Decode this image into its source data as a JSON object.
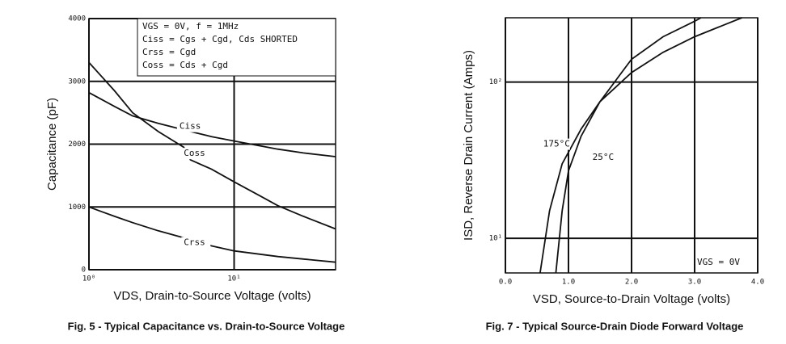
{
  "chart_data": [
    {
      "type": "line",
      "caption": "Fig. 5 - Typical Capacitance vs. Drain-to-Source Voltage",
      "xlabel": "VDS, Drain-to-Source Voltage (volts)",
      "ylabel": "Capacitance (pF)",
      "xscale": "log",
      "xlim": [
        1,
        50
      ],
      "xticks": [
        {
          "value": 1,
          "label": "10⁰"
        },
        {
          "value": 10,
          "label": "10¹"
        }
      ],
      "ylim": [
        0,
        4000
      ],
      "yticks": [
        0,
        1000,
        2000,
        3000,
        4000
      ],
      "grid": true,
      "annotations": [
        "VGS = 0V,  f = 1MHz",
        "Ciss = Cgs + Cgd,  Cds SHORTED",
        "Crss = Cgd",
        "Coss = Cds + Cgd"
      ],
      "series": [
        {
          "name": "Ciss",
          "color": "#111111",
          "x": [
            1,
            1.5,
            2,
            3,
            5,
            7,
            10,
            20,
            30,
            50
          ],
          "values": [
            2820,
            2600,
            2450,
            2330,
            2200,
            2120,
            2050,
            1920,
            1860,
            1800
          ]
        },
        {
          "name": "Coss",
          "color": "#111111",
          "x": [
            1,
            1.5,
            2,
            3,
            4.5,
            5,
            7,
            10,
            15,
            20,
            30,
            50
          ],
          "values": [
            3300,
            2850,
            2500,
            2200,
            1950,
            1750,
            1600,
            1400,
            1180,
            1020,
            850,
            650
          ]
        },
        {
          "name": "Crss",
          "color": "#111111",
          "x": [
            1,
            1.5,
            2,
            3,
            5,
            7,
            10,
            20,
            30,
            50
          ],
          "values": [
            1000,
            850,
            750,
            620,
            480,
            380,
            300,
            210,
            170,
            120
          ]
        }
      ]
    },
    {
      "type": "line",
      "caption": "Fig. 7 - Typical Source-Drain Diode Forward Voltage",
      "xlabel": "VSD, Source-to-Drain Voltage (volts)",
      "ylabel": "ISD, Reverse Drain Current (Amps)",
      "xlim": [
        0,
        4
      ],
      "xticks": [
        {
          "value": 0,
          "label": "0.0"
        },
        {
          "value": 1,
          "label": "1.0"
        },
        {
          "value": 2,
          "label": "2.0"
        },
        {
          "value": 3,
          "label": "3.0"
        },
        {
          "value": 4,
          "label": "4.0"
        }
      ],
      "yscale": "log",
      "ylim": [
        6,
        258
      ],
      "yticks": [
        {
          "value": 10,
          "label": "10¹"
        },
        {
          "value": 100,
          "label": "10²"
        }
      ],
      "grid": true,
      "annotations": [
        "VGS = 0V"
      ],
      "series": [
        {
          "name": "175°C",
          "color": "#111111",
          "x": [
            0.55,
            0.7,
            0.9,
            1.2,
            1.5,
            2.0,
            2.5,
            3.0,
            3.5,
            3.75
          ],
          "values": [
            6,
            15,
            30,
            50,
            75,
            115,
            155,
            195,
            235,
            258
          ]
        },
        {
          "name": "25°C",
          "color": "#111111",
          "x": [
            0.8,
            0.9,
            1.0,
            1.2,
            1.5,
            2.0,
            2.5,
            3.0,
            3.1
          ],
          "values": [
            6,
            15,
            27,
            45,
            75,
            140,
            195,
            245,
            258
          ]
        }
      ]
    }
  ]
}
